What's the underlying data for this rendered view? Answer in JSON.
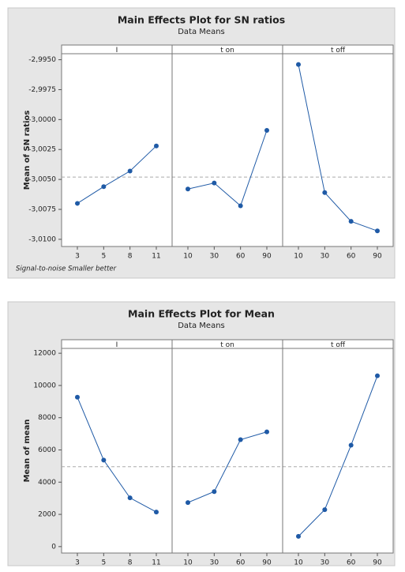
{
  "chart_data": [
    {
      "type": "line",
      "title": "Main Effects Plot for SN ratios",
      "subtitle": "Data Means",
      "ylabel": "Mean of SN ratios",
      "footnote": "Signal-to-noise Smaller better",
      "color": "#1f5aa6",
      "mean_line": -3.0048,
      "ylim": [
        -3.0106,
        -2.9945
      ],
      "yticks": [
        {
          "value": -2.995,
          "label": "-2,9950"
        },
        {
          "value": -2.9975,
          "label": "-2,9975"
        },
        {
          "value": -3.0,
          "label": "-3,0000"
        },
        {
          "value": -3.0025,
          "label": "-3,0025"
        },
        {
          "value": -3.005,
          "label": "-3,0050"
        },
        {
          "value": -3.0075,
          "label": "-3,0075"
        },
        {
          "value": -3.01,
          "label": "-3,0100"
        }
      ],
      "panels": [
        {
          "name": "I",
          "categories": [
            "3",
            "5",
            "8",
            "11"
          ],
          "values": [
            -3.007,
            -3.0056,
            -3.0043,
            -3.0022
          ]
        },
        {
          "name": "t on",
          "categories": [
            "10",
            "30",
            "60",
            "90"
          ],
          "values": [
            -3.0058,
            -3.0053,
            -3.0072,
            -3.0009
          ]
        },
        {
          "name": "t off",
          "categories": [
            "10",
            "30",
            "60",
            "90"
          ],
          "values": [
            -2.9954,
            -3.0061,
            -3.0085,
            -3.0093
          ]
        }
      ]
    },
    {
      "type": "line",
      "title": "Main Effects Plot for Mean",
      "subtitle": "Data Means",
      "ylabel": "Mean of mean",
      "color": "#1f5aa6",
      "mean_line": 4960,
      "ylim": [
        -400,
        12300
      ],
      "yticks": [
        0,
        2000,
        4000,
        6000,
        8000,
        10000,
        12000
      ],
      "panels": [
        {
          "name": "I",
          "categories": [
            "3",
            "5",
            "8",
            "11"
          ],
          "values": [
            9270,
            5366,
            3024,
            2146
          ]
        },
        {
          "name": "t on",
          "categories": [
            "10",
            "30",
            "60",
            "90"
          ],
          "values": [
            2732,
            3415,
            6634,
            7122
          ]
        },
        {
          "name": "t off",
          "categories": [
            "10",
            "30",
            "60",
            "90"
          ],
          "values": [
            634,
            2293,
            6293,
            10600
          ]
        }
      ]
    }
  ]
}
